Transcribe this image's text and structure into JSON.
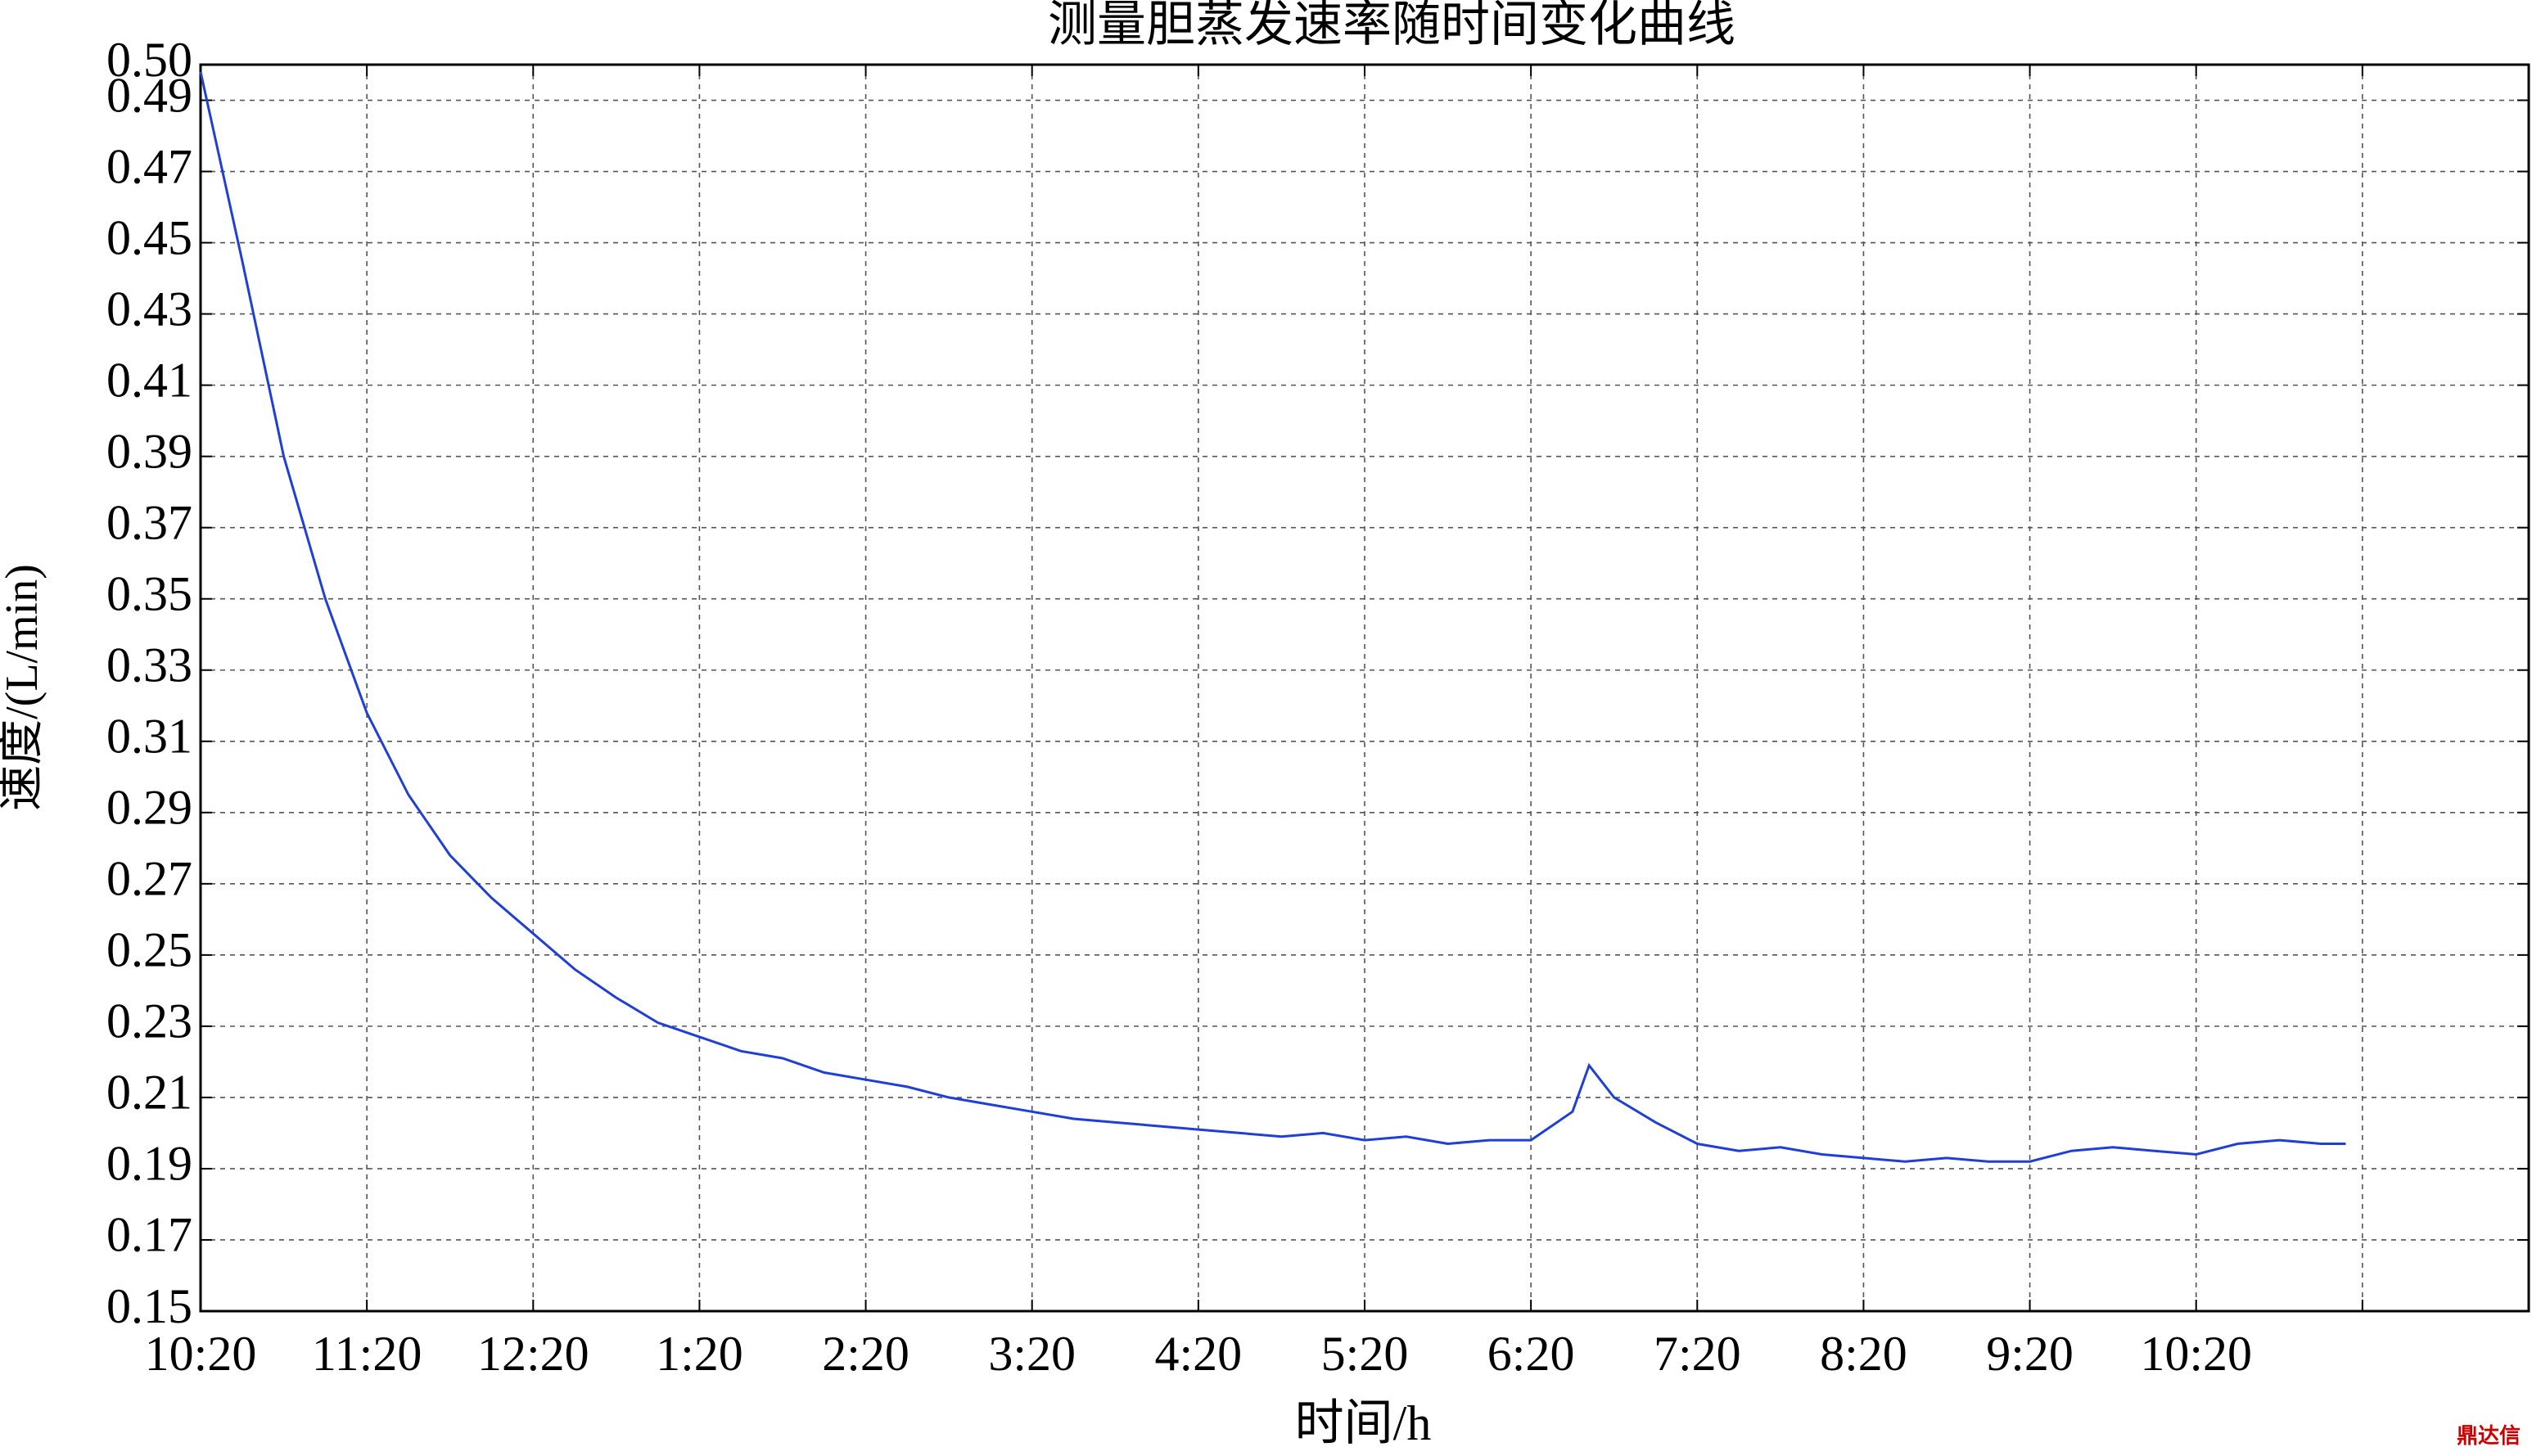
{
  "chart_data": {
    "type": "line",
    "title": "测量胆蒸发速率随时间变化曲线",
    "x_label": "时间/h",
    "y_label": "速度/(L/min)",
    "watermark": "鼎达信",
    "grid": true,
    "xlim": [
      0,
      14
    ],
    "xticks": [
      {
        "value": 0,
        "label": "10:20"
      },
      {
        "value": 1,
        "label": "11:20"
      },
      {
        "value": 2,
        "label": "12:20"
      },
      {
        "value": 3,
        "label": "1:20"
      },
      {
        "value": 4,
        "label": "2:20"
      },
      {
        "value": 5,
        "label": "3:20"
      },
      {
        "value": 6,
        "label": "4:20"
      },
      {
        "value": 7,
        "label": "5:20"
      },
      {
        "value": 8,
        "label": "6:20"
      },
      {
        "value": 9,
        "label": "7:20"
      },
      {
        "value": 10,
        "label": "8:20"
      },
      {
        "value": 11,
        "label": "9:20"
      },
      {
        "value": 12,
        "label": "10:20"
      },
      {
        "value": 13,
        "label": null
      }
    ],
    "ylim": [
      0.15,
      0.5
    ],
    "yticks": [
      0.15,
      0.17,
      0.19,
      0.21,
      0.23,
      0.25,
      0.27,
      0.29,
      0.31,
      0.33,
      0.35,
      0.37,
      0.39,
      0.41,
      0.43,
      0.45,
      0.47,
      0.49,
      {
        "value": 0.5,
        "label": "0.50"
      }
    ],
    "series": [
      {
        "color": "#1f3fd6",
        "x": [
          0,
          0.25,
          0.5,
          0.75,
          1.0,
          1.25,
          1.5,
          1.75,
          2.0,
          2.25,
          2.5,
          2.75,
          3.0,
          3.25,
          3.5,
          3.75,
          4.0,
          4.25,
          4.5,
          4.75,
          5.0,
          5.25,
          5.5,
          5.75,
          6.0,
          6.25,
          6.5,
          6.75,
          7.0,
          7.25,
          7.5,
          7.75,
          8.0,
          8.25,
          8.35,
          8.5,
          8.75,
          9.0,
          9.25,
          9.5,
          9.75,
          10.0,
          10.25,
          10.5,
          10.75,
          11.0,
          11.25,
          11.5,
          11.75,
          12.0,
          12.25,
          12.5,
          12.75,
          12.9
        ],
        "values": [
          0.498,
          0.445,
          0.39,
          0.35,
          0.318,
          0.295,
          0.278,
          0.266,
          0.256,
          0.246,
          0.238,
          0.231,
          0.227,
          0.223,
          0.221,
          0.217,
          0.215,
          0.213,
          0.21,
          0.208,
          0.206,
          0.204,
          0.203,
          0.202,
          0.201,
          0.2,
          0.199,
          0.2,
          0.198,
          0.199,
          0.197,
          0.198,
          0.198,
          0.206,
          0.219,
          0.21,
          0.203,
          0.197,
          0.195,
          0.196,
          0.194,
          0.193,
          0.192,
          0.193,
          0.192,
          0.192,
          0.195,
          0.196,
          0.195,
          0.194,
          0.197,
          0.198,
          0.197,
          0.197
        ]
      }
    ]
  }
}
